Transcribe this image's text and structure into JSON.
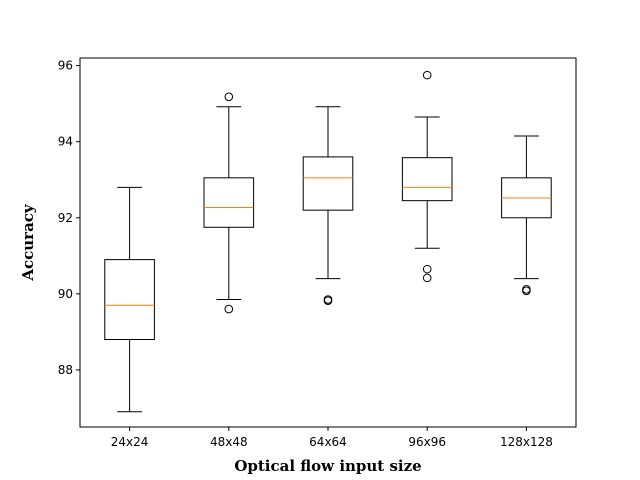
{
  "chart_data": {
    "type": "box",
    "xlabel": "Optical flow input size",
    "ylabel": "Accuracy",
    "ylim": [
      86.5,
      96.2
    ],
    "yticks": [
      88,
      90,
      92,
      94,
      96
    ],
    "categories": [
      "24x24",
      "48x48",
      "64x64",
      "96x96",
      "128x128"
    ],
    "boxes": [
      {
        "whislo": 86.9,
        "q1": 88.8,
        "med": 89.7,
        "q3": 90.9,
        "whishi": 92.8,
        "fliers": []
      },
      {
        "whislo": 89.85,
        "q1": 91.75,
        "med": 92.27,
        "q3": 93.05,
        "whishi": 94.92,
        "fliers": [
          95.18,
          89.6
        ]
      },
      {
        "whislo": 90.4,
        "q1": 92.2,
        "med": 93.05,
        "q3": 93.6,
        "whishi": 94.92,
        "fliers": [
          89.85,
          89.82
        ]
      },
      {
        "whislo": 91.2,
        "q1": 92.45,
        "med": 92.8,
        "q3": 93.58,
        "whishi": 94.65,
        "fliers": [
          95.75,
          90.65,
          90.42
        ]
      },
      {
        "whislo": 90.4,
        "q1": 92.0,
        "med": 92.52,
        "q3": 93.05,
        "whishi": 94.15,
        "fliers": [
          90.12,
          90.08
        ]
      }
    ],
    "colors": {
      "box": "#000000",
      "median": "#ff7f0e",
      "flier": "#000000"
    }
  }
}
